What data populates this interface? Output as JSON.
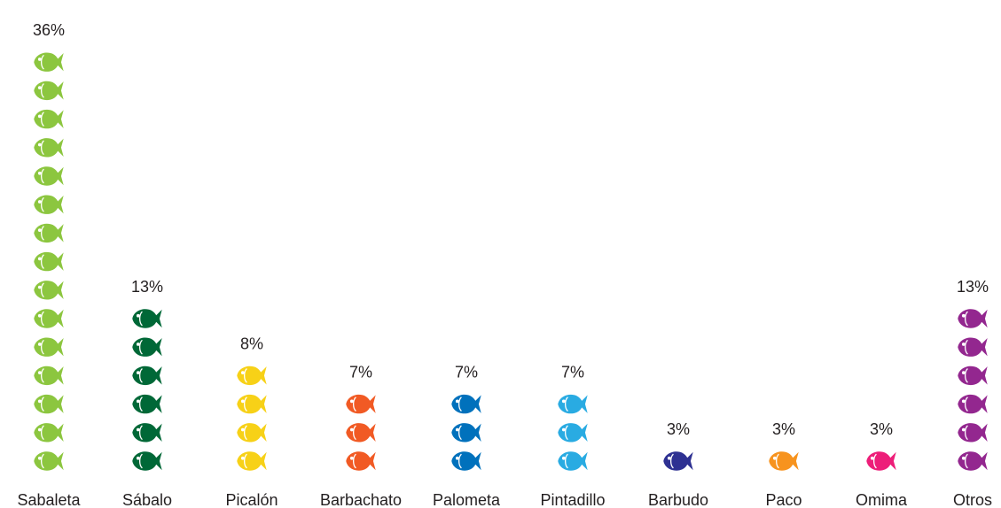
{
  "chart_data": {
    "type": "bar",
    "categories": [
      "Sabaleta",
      "Sábalo",
      "Picalón",
      "Barbachato",
      "Palometa",
      "Pintadillo",
      "Barbudo",
      "Paco",
      "Omima",
      "Otros"
    ],
    "values": [
      36,
      13,
      8,
      7,
      7,
      7,
      3,
      3,
      3,
      13
    ],
    "value_labels": [
      "36%",
      "13%",
      "8%",
      "7%",
      "7%",
      "7%",
      "3%",
      "3%",
      "3%",
      "13%"
    ],
    "icon_counts": [
      15,
      6,
      4,
      3,
      3,
      3,
      1,
      1,
      1,
      6
    ],
    "colors": [
      "#8cc63f",
      "#006837",
      "#f7d117",
      "#f15a24",
      "#0071bc",
      "#29abe2",
      "#2e3192",
      "#f7931e",
      "#ed1e79",
      "#93278f"
    ],
    "icon": "fish-icon",
    "grid": false,
    "legend": "none"
  }
}
